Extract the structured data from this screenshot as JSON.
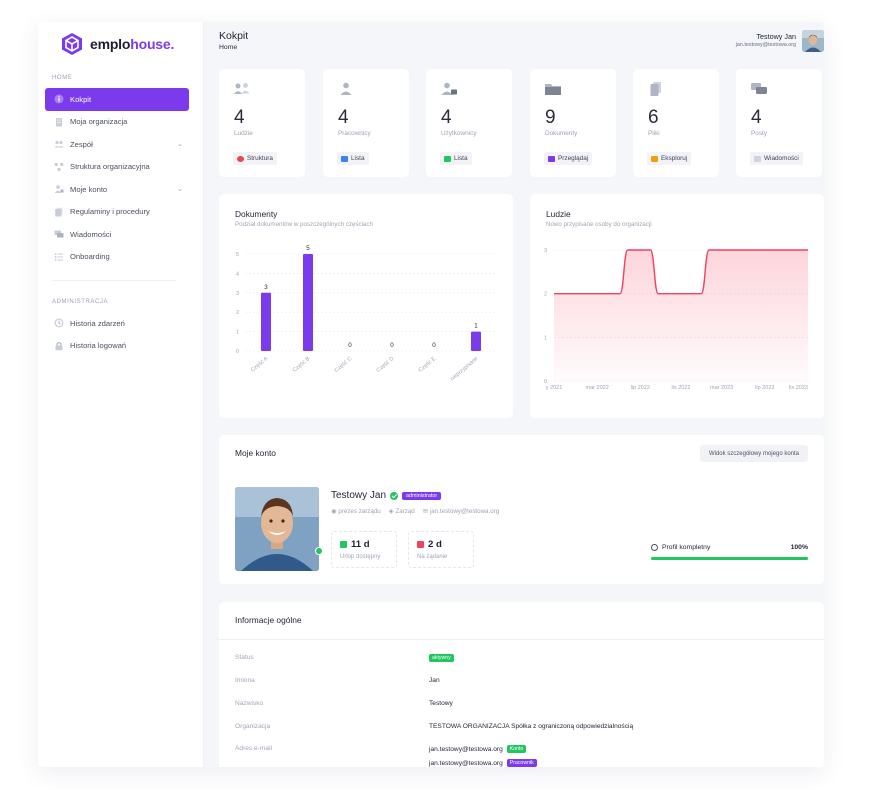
{
  "brand": {
    "name_part1": "emplo",
    "name_part2": "house.",
    "accent": "#7c3aed"
  },
  "sidebar": {
    "section_home": "HOME",
    "items": [
      {
        "label": "Kokpit",
        "icon": "info-icon",
        "active": true
      },
      {
        "label": "Moja organizacja",
        "icon": "building-icon"
      },
      {
        "label": "Zespół",
        "icon": "team-icon",
        "chevron": true
      },
      {
        "label": "Struktura organizacyjna",
        "icon": "structure-icon"
      },
      {
        "label": "Moje konto",
        "icon": "user-key-icon",
        "chevron": true
      },
      {
        "label": "Regulaminy i procedury",
        "icon": "documents-icon"
      },
      {
        "label": "Wiadomości",
        "icon": "messages-icon"
      },
      {
        "label": "Onboarding",
        "icon": "checklist-icon"
      }
    ],
    "section_admin": "ADMINISTRACJA",
    "admin_items": [
      {
        "label": "Historia zdarzeń",
        "icon": "history-icon"
      },
      {
        "label": "Historia logowań",
        "icon": "lock-icon"
      }
    ]
  },
  "header": {
    "title": "Kokpit",
    "breadcrumb": "Home",
    "user_name": "Testowy Jan",
    "user_email": "jan.testowy@testowa.org"
  },
  "stats": [
    {
      "value": "4",
      "label": "Ludzie",
      "button": "Struktura",
      "icon": "people-icon",
      "btn_color": "#ef4444"
    },
    {
      "value": "4",
      "label": "Pracownicy",
      "button": "Lista",
      "icon": "employee-icon",
      "btn_color": "#3b82f6"
    },
    {
      "value": "4",
      "label": "Użytkownicy",
      "button": "Lista",
      "icon": "user-lock-icon",
      "btn_color": "#22c55e"
    },
    {
      "value": "9",
      "label": "Dokumenty",
      "button": "Przeglądaj",
      "icon": "folder-icon",
      "btn_color": "#7c3aed"
    },
    {
      "value": "6",
      "label": "Pliki",
      "button": "Eksploruj",
      "icon": "files-icon",
      "btn_color": "#f59e0b"
    },
    {
      "value": "4",
      "label": "Posty",
      "button": "Wiadomości",
      "icon": "chat-icon",
      "btn_color": "#9ca3af"
    }
  ],
  "documents_panel": {
    "title": "Dokumenty",
    "subtitle": "Podział dokumentów w poszczególnych częściach"
  },
  "people_panel": {
    "title": "Ludzie",
    "subtitle": "Nowo przypisane osoby do organizacji"
  },
  "chart_data": [
    {
      "type": "bar",
      "categories": [
        "Część A",
        "Część B",
        "Część C",
        "Część D",
        "Część E",
        "nieprzypisane"
      ],
      "values": [
        3,
        5,
        0,
        0,
        0,
        1
      ],
      "ylim": [
        0,
        5
      ],
      "yticks": [
        "0",
        "1",
        "2",
        "3",
        "4",
        "5"
      ],
      "color": "#7c3aed",
      "grid": true
    },
    {
      "type": "area",
      "x": [
        "sty 2021",
        "mar 2022",
        "lip 2022",
        "lis 2022",
        "mar 2023",
        "lip 2023",
        "lis 2023"
      ],
      "xlabels": [
        "sty 2021",
        "mar 2022",
        "lip 2022",
        "lis 2022",
        "mar 2023",
        "lip 2023",
        "lis 2023"
      ],
      "xlabels_visible": [
        "y 2021",
        "mar 2022",
        "lip 2022",
        "lis 2022",
        "mar 2023",
        "lip 2023",
        "lis 2023"
      ],
      "points": [
        {
          "x": 0.0,
          "y": 2
        },
        {
          "x": 0.26,
          "y": 2
        },
        {
          "x": 0.29,
          "y": 3
        },
        {
          "x": 0.38,
          "y": 3
        },
        {
          "x": 0.41,
          "y": 2
        },
        {
          "x": 0.58,
          "y": 2
        },
        {
          "x": 0.61,
          "y": 3
        },
        {
          "x": 1.0,
          "y": 3
        }
      ],
      "ylim": [
        0,
        3
      ],
      "yticks": [
        "0",
        "1",
        "2",
        "3"
      ],
      "color": "#f43f5e",
      "grid": true
    }
  ],
  "account": {
    "title": "Moje konto",
    "details_button": "Widok szczegółowy mojego konta",
    "name": "Testowy Jan",
    "role": "administrator",
    "position": "prezes zarządu",
    "department": "Zarząd",
    "email": "jan.testowy@testowa.org",
    "leave_value": "11 d",
    "leave_label": "Urlop dostępny",
    "on_demand_value": "2 d",
    "on_demand_label": "Na żądanie",
    "profile_label": "Profil kompletny",
    "profile_pct": "100%",
    "profile_fraction": 1.0
  },
  "info": {
    "title": "Informacje ogólne",
    "rows": [
      {
        "key": "Status",
        "value": "",
        "tag": "aktywny"
      },
      {
        "key": "Imiona",
        "value": "Jan"
      },
      {
        "key": "Nazwisko",
        "value": "Testowy"
      },
      {
        "key": "Organizacja",
        "value": "TESTOWA ORGANIZACJA Spółka z ograniczoną odpowiedzialnością"
      },
      {
        "key": "Adres e-mail",
        "value": "jan.testowy@testowa.org",
        "tag": "Konto"
      },
      {
        "key": "",
        "value": "jan.testowy@testowa.org",
        "tag2": "Pracownik"
      }
    ]
  }
}
